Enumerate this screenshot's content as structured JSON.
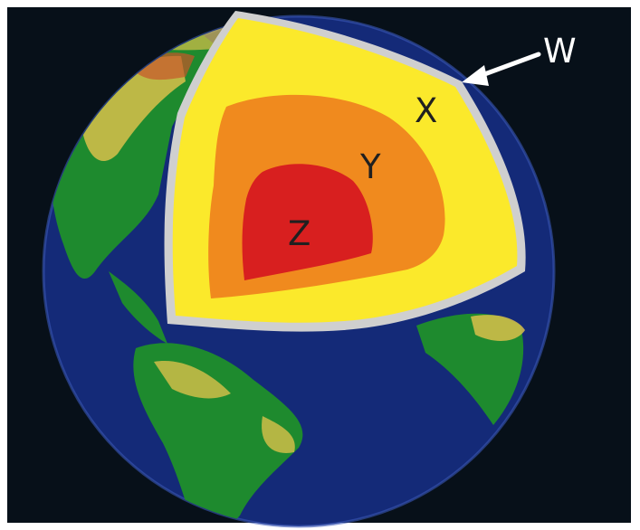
{
  "labels": {
    "w": "W",
    "x": "X",
    "y": "Y",
    "z": "Z"
  },
  "colors": {
    "background": "#071019",
    "ocean": "#142a78",
    "land": "#1e8a2e",
    "desert": "#d9c04a",
    "crust_outline": "#cfcfcf",
    "layer_x": "#fbe92b",
    "layer_y": "#f08a1e",
    "layer_z": "#d81f1f",
    "arrow": "#ffffff"
  }
}
